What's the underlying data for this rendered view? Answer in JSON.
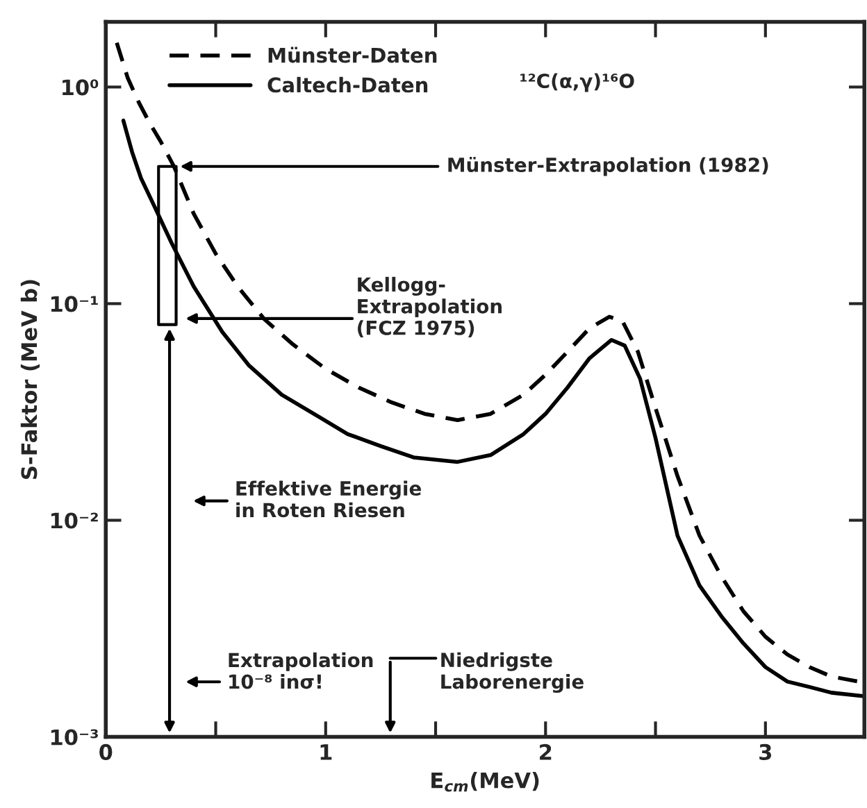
{
  "chart_data": {
    "type": "line",
    "xlabel": "E$_{cm}$(MeV)",
    "ylabel": "S-Faktor (MeV b)",
    "log": "y",
    "xlim": [
      0,
      3.45
    ],
    "ylim": [
      0.001,
      2.0
    ],
    "xticks": [
      0,
      {
        "value": 0.5,
        "label": null
      },
      1,
      {
        "value": 1.5,
        "label": null
      },
      2,
      {
        "value": 2.5,
        "label": null
      },
      3
    ],
    "yticks": [
      {
        "value": 0.001,
        "label": "10⁻³"
      },
      {
        "value": 0.01,
        "label": "10⁻²"
      },
      {
        "value": 0.1,
        "label": "10⁻¹"
      },
      {
        "value": 1,
        "label": "10⁰"
      }
    ],
    "grid": false,
    "legend": "top left",
    "series": [
      {
        "name": "Münster-Daten",
        "color": "#000000",
        "line_style": "dashed",
        "x": [
          0.05,
          0.1,
          0.15,
          0.2,
          0.25,
          0.31,
          0.4,
          0.5,
          0.6,
          0.72,
          0.85,
          1.0,
          1.15,
          1.3,
          1.45,
          1.6,
          1.75,
          1.9,
          2.0,
          2.1,
          2.2,
          2.29,
          2.35,
          2.42,
          2.5,
          2.6,
          2.7,
          2.8,
          2.9,
          3.0,
          3.1,
          3.2,
          3.3,
          3.45
        ],
        "values": [
          1.6,
          1.1,
          0.85,
          0.68,
          0.56,
          0.43,
          0.26,
          0.17,
          0.12,
          0.085,
          0.065,
          0.05,
          0.041,
          0.035,
          0.031,
          0.029,
          0.031,
          0.038,
          0.047,
          0.06,
          0.077,
          0.087,
          0.083,
          0.06,
          0.033,
          0.016,
          0.0085,
          0.0055,
          0.0038,
          0.0029,
          0.0024,
          0.0021,
          0.0019,
          0.00178
        ]
      },
      {
        "name": "Caltech-Daten",
        "color": "#000000",
        "line_style": "solid",
        "x": [
          0.08,
          0.12,
          0.16,
          0.215,
          0.3,
          0.4,
          0.53,
          0.65,
          0.8,
          0.97,
          1.1,
          1.25,
          1.4,
          1.6,
          1.75,
          1.9,
          2.0,
          2.1,
          2.2,
          2.3,
          2.36,
          2.43,
          2.5,
          2.6,
          2.7,
          2.8,
          2.9,
          3.0,
          3.1,
          3.2,
          3.3,
          3.45
        ],
        "values": [
          0.7,
          0.5,
          0.38,
          0.29,
          0.19,
          0.12,
          0.074,
          0.052,
          0.038,
          0.03,
          0.025,
          0.022,
          0.0195,
          0.0186,
          0.02,
          0.025,
          0.031,
          0.041,
          0.056,
          0.068,
          0.064,
          0.045,
          0.024,
          0.0085,
          0.005,
          0.0036,
          0.0027,
          0.0021,
          0.0018,
          0.0017,
          0.0016,
          0.00154
        ]
      }
    ],
    "annotations": [
      "¹²C(α,γ)¹⁶O",
      {
        "text": "Münster-Extrapolation (1982)",
        "x": 0.32,
        "y": 0.43
      },
      "Kellogg-\nExtrapolation\n(FCZ 1975)",
      "Effektive Energie\nin Roten Riesen",
      "Extrapolation\n10⁻⁸ inσ!",
      "Niedrigste\nLaborenergie"
    ]
  }
}
